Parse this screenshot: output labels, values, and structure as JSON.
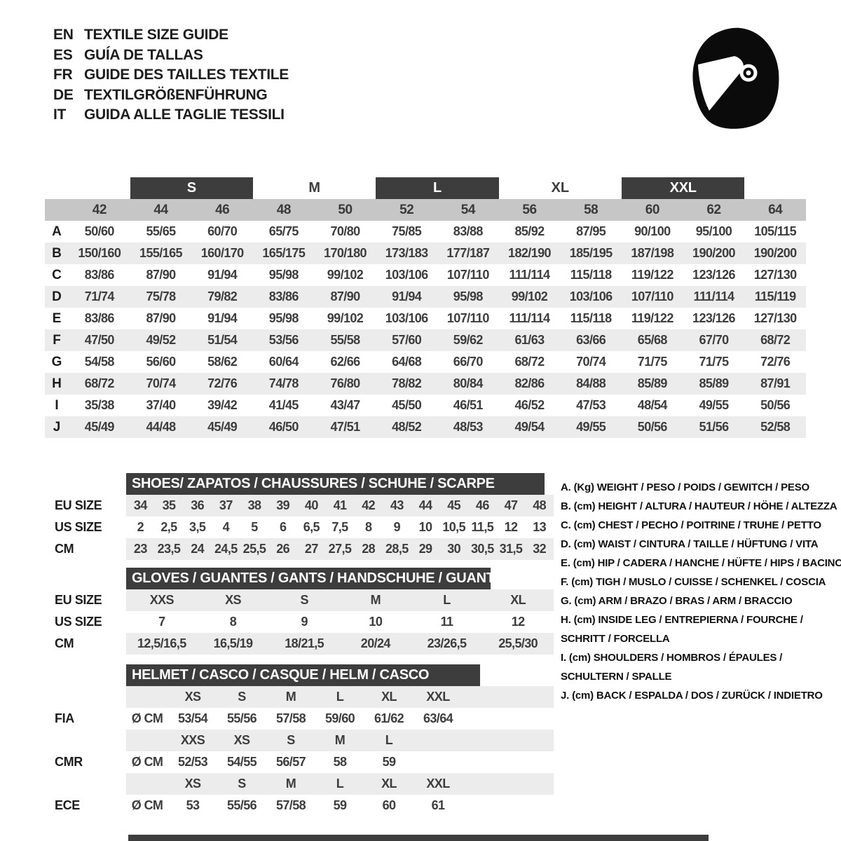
{
  "languages": [
    {
      "code": "EN",
      "title": "TEXTILE SIZE GUIDE"
    },
    {
      "code": "ES",
      "title": "GUÍA DE TALLAS"
    },
    {
      "code": "FR",
      "title": "GUIDE DES TAILLES TEXTILE"
    },
    {
      "code": "DE",
      "title": "TEXTILGRÖßENFÜHRUNG"
    },
    {
      "code": "IT",
      "title": "GUIDA ALLE TAGLIE TESSILI"
    }
  ],
  "icons": {
    "helmet": "racing-helmet-icon"
  },
  "size_table": {
    "size_groups": [
      {
        "label": "S",
        "boxed": true,
        "covers": [
          "44",
          "46"
        ]
      },
      {
        "label": "M",
        "boxed": false,
        "covers": [
          "48",
          "50"
        ]
      },
      {
        "label": "L",
        "boxed": true,
        "covers": [
          "52",
          "54"
        ]
      },
      {
        "label": "XL",
        "boxed": false,
        "covers": [
          "56",
          "58"
        ]
      },
      {
        "label": "XXL",
        "boxed": true,
        "covers": [
          "60",
          "62"
        ]
      }
    ],
    "columns": [
      "42",
      "44",
      "46",
      "48",
      "50",
      "52",
      "54",
      "56",
      "58",
      "60",
      "62",
      "64"
    ],
    "rows": [
      {
        "label": "A",
        "values": [
          "50/60",
          "55/65",
          "60/70",
          "65/75",
          "70/80",
          "75/85",
          "83/88",
          "85/92",
          "87/95",
          "90/100",
          "95/100",
          "105/115"
        ]
      },
      {
        "label": "B",
        "values": [
          "150/160",
          "155/165",
          "160/170",
          "165/175",
          "170/180",
          "173/183",
          "177/187",
          "182/190",
          "185/195",
          "187/198",
          "190/200",
          "190/200"
        ]
      },
      {
        "label": "C",
        "values": [
          "83/86",
          "87/90",
          "91/94",
          "95/98",
          "99/102",
          "103/106",
          "107/110",
          "111/114",
          "115/118",
          "119/122",
          "123/126",
          "127/130"
        ]
      },
      {
        "label": "D",
        "values": [
          "71/74",
          "75/78",
          "79/82",
          "83/86",
          "87/90",
          "91/94",
          "95/98",
          "99/102",
          "103/106",
          "107/110",
          "111/114",
          "115/119"
        ]
      },
      {
        "label": "E",
        "values": [
          "83/86",
          "87/90",
          "91/94",
          "95/98",
          "99/102",
          "103/106",
          "107/110",
          "111/114",
          "115/118",
          "119/122",
          "123/126",
          "127/130"
        ]
      },
      {
        "label": "F",
        "values": [
          "47/50",
          "49/52",
          "51/54",
          "53/56",
          "55/58",
          "57/60",
          "59/62",
          "61/63",
          "63/66",
          "65/68",
          "67/70",
          "68/72"
        ]
      },
      {
        "label": "G",
        "values": [
          "54/58",
          "56/60",
          "58/62",
          "60/64",
          "62/66",
          "64/68",
          "66/70",
          "68/72",
          "70/74",
          "71/75",
          "71/75",
          "72/76"
        ]
      },
      {
        "label": "H",
        "values": [
          "68/72",
          "70/74",
          "72/76",
          "74/78",
          "76/80",
          "78/82",
          "80/84",
          "82/86",
          "84/88",
          "85/89",
          "85/89",
          "87/91"
        ]
      },
      {
        "label": "I",
        "values": [
          "35/38",
          "37/40",
          "39/42",
          "41/45",
          "43/47",
          "45/50",
          "46/51",
          "46/52",
          "47/53",
          "48/54",
          "49/55",
          "50/56"
        ]
      },
      {
        "label": "J",
        "values": [
          "45/49",
          "44/48",
          "45/49",
          "46/50",
          "47/51",
          "48/52",
          "48/53",
          "49/54",
          "49/55",
          "50/56",
          "51/56",
          "52/58"
        ]
      }
    ]
  },
  "shoes": {
    "header": "SHOES/ ZAPATOS / CHAUSSURES / SCHUHE / SCARPE",
    "rows": [
      {
        "label": "EU SIZE",
        "values": [
          "34",
          "35",
          "36",
          "37",
          "38",
          "39",
          "40",
          "41",
          "42",
          "43",
          "44",
          "45",
          "46",
          "47",
          "48"
        ]
      },
      {
        "label": "US SIZE",
        "values": [
          "2",
          "2,5",
          "3,5",
          "4",
          "5",
          "6",
          "6,5",
          "7,5",
          "8",
          "9",
          "10",
          "10,5",
          "11,5",
          "12",
          "13"
        ]
      },
      {
        "label": "CM",
        "values": [
          "23",
          "23,5",
          "24",
          "24,5",
          "25,5",
          "26",
          "27",
          "27,5",
          "28",
          "28,5",
          "29",
          "30",
          "30,5",
          "31,5",
          "32"
        ]
      }
    ]
  },
  "gloves": {
    "header": "GLOVES / GUANTES / GANTS / HANDSCHUHE / GUANTI",
    "rows": [
      {
        "label": "EU SIZE",
        "values": [
          "XXS",
          "XS",
          "S",
          "M",
          "L",
          "XL"
        ]
      },
      {
        "label": "US SIZE",
        "values": [
          "7",
          "8",
          "9",
          "10",
          "11",
          "12"
        ]
      },
      {
        "label": "CM",
        "values": [
          "12,5/16,5",
          "16,5/19",
          "18/21,5",
          "20/24",
          "23/26,5",
          "25,5/30"
        ]
      }
    ]
  },
  "helmet": {
    "header": "HELMET / CASCO / CASQUE / HELM / CASCO",
    "groups": [
      {
        "label": "FIA",
        "unit": "Ø CM",
        "sizes": [
          "XS",
          "S",
          "M",
          "L",
          "XL",
          "XXL"
        ],
        "values": [
          "53/54",
          "55/56",
          "57/58",
          "59/60",
          "61/62",
          "63/64"
        ]
      },
      {
        "label": "CMR",
        "unit": "Ø CM",
        "sizes": [
          "XXS",
          "XS",
          "S",
          "M",
          "L"
        ],
        "values": [
          "52/53",
          "54/55",
          "56/57",
          "58",
          "59"
        ]
      },
      {
        "label": "ECE",
        "unit": "Ø CM",
        "sizes": [
          "XS",
          "S",
          "M",
          "L",
          "XL",
          "XXL"
        ],
        "values": [
          "53",
          "55/56",
          "57/58",
          "59",
          "60",
          "61"
        ]
      }
    ]
  },
  "legend": {
    "items": [
      [
        "A. (Kg) WEIGHT / PESO / POIDS / GEWITCH / PESO"
      ],
      [
        "B. (cm) HEIGHT / ALTURA / HAUTEUR / HÖHE / ALTEZZA"
      ],
      [
        "C. (cm) CHEST / PECHO / POITRINE / TRUHE / PETTO"
      ],
      [
        "D. (cm) WAIST / CINTURA / TAILLE / HÜFTUNG / VITA"
      ],
      [
        "E. (cm) HIP / CADERA / HANCHE / HÜFTE / HIPS / BACINO"
      ],
      [
        "F. (cm) TIGH / MUSLO / CUISSE / SCHENKEL / COSCIA"
      ],
      [
        "G. (cm) ARM / BRAZO / BRAS / ARM / BRACCIO"
      ],
      [
        "H. (cm) INSIDE LEG / ENTREPIERNA / FOURCHE /",
        "SCHRITT / FORCELLA"
      ],
      [
        "I. (cm) SHOULDERS / HOMBROS / ÉPAULES /",
        "SCHULTERN / SPALLE"
      ],
      [
        "J. (cm) BACK / ESPALDA / DOS / ZURÜCK / INDIETRO"
      ]
    ]
  },
  "colors": {
    "header_bar": "#3d3d3d",
    "columns_band": "#c6c6c6",
    "row_stripe": "#ececec",
    "icon": "#0b0b0b",
    "text": "#3d3d3d"
  }
}
